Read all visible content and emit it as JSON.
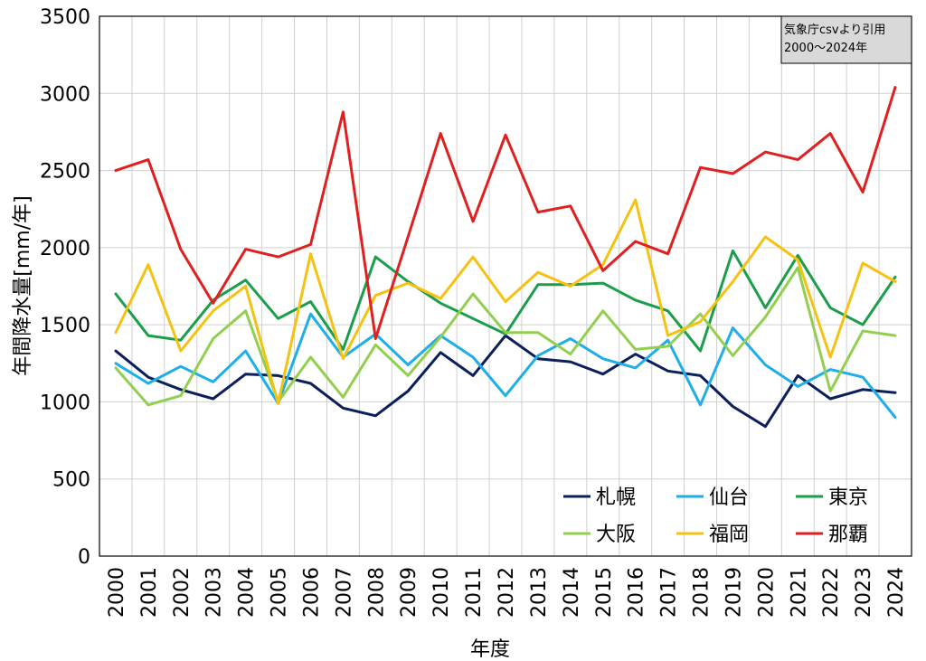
{
  "chart_data": {
    "type": "line",
    "xlabel": "年度",
    "ylabel": "年間降水量[mm/年]",
    "ylim": [
      0,
      3500
    ],
    "yticks": [
      "0",
      "500",
      "1000",
      "1500",
      "2000",
      "2500",
      "3000",
      "3500"
    ],
    "categories": [
      "2000",
      "2001",
      "2002",
      "2003",
      "2004",
      "2005",
      "2006",
      "2007",
      "2008",
      "2009",
      "2010",
      "2011",
      "2012",
      "2013",
      "2014",
      "2015",
      "2016",
      "2017",
      "2018",
      "2019",
      "2020",
      "2021",
      "2022",
      "2023",
      "2024"
    ],
    "grid": true,
    "legend_position": "bottom-right",
    "annotation": [
      "気象庁csvより引用",
      "2000〜2024年"
    ],
    "series": [
      {
        "name": "札幌",
        "color": "#0b1f5c",
        "values": [
          1330,
          1160,
          1080,
          1020,
          1180,
          1170,
          1120,
          960,
          910,
          1070,
          1320,
          1170,
          1430,
          1280,
          1260,
          1180,
          1310,
          1200,
          1170,
          970,
          840,
          1170,
          1020,
          1080,
          1060
        ]
      },
      {
        "name": "仙台",
        "color": "#1eaee8",
        "values": [
          1250,
          1120,
          1230,
          1130,
          1330,
          990,
          1570,
          1290,
          1440,
          1240,
          1430,
          1290,
          1040,
          1300,
          1410,
          1280,
          1220,
          1400,
          980,
          1480,
          1240,
          1100,
          1210,
          1160,
          900
        ]
      },
      {
        "name": "東京",
        "color": "#1a9e4a",
        "values": [
          1700,
          1430,
          1400,
          1660,
          1790,
          1540,
          1650,
          1340,
          1940,
          1780,
          1640,
          1540,
          1440,
          1760,
          1760,
          1770,
          1660,
          1590,
          1330,
          1980,
          1610,
          1950,
          1610,
          1500,
          1810
        ]
      },
      {
        "name": "大阪",
        "color": "#92cf50",
        "values": [
          1220,
          980,
          1040,
          1410,
          1590,
          1000,
          1290,
          1030,
          1370,
          1170,
          1420,
          1700,
          1450,
          1450,
          1310,
          1590,
          1340,
          1360,
          1570,
          1300,
          1550,
          1870,
          1070,
          1460,
          1430
        ]
      },
      {
        "name": "福岡",
        "color": "#f5c211",
        "values": [
          1450,
          1890,
          1330,
          1590,
          1750,
          990,
          1960,
          1280,
          1690,
          1770,
          1670,
          1940,
          1650,
          1840,
          1750,
          1890,
          2310,
          1430,
          1520,
          1780,
          2070,
          1920,
          1290,
          1900,
          1780
        ]
      },
      {
        "name": "那覇",
        "color": "#e02020",
        "values": [
          2500,
          2570,
          1990,
          1640,
          1990,
          1940,
          2020,
          2880,
          1410,
          2070,
          2740,
          2170,
          2730,
          2230,
          2270,
          1850,
          2040,
          1960,
          2520,
          2480,
          2620,
          2570,
          2740,
          2360,
          3040
        ]
      }
    ]
  }
}
